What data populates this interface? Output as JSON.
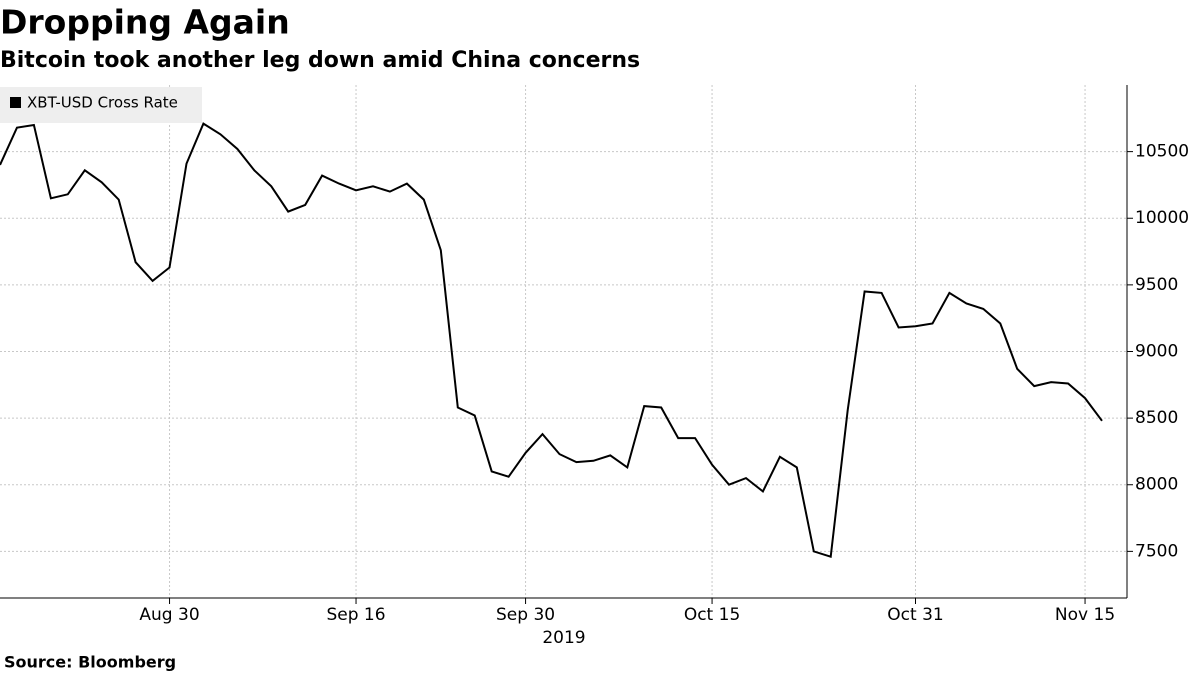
{
  "chart_data": {
    "type": "line",
    "title": "Dropping Again",
    "subtitle": "Bitcoin took another leg down amid China concerns",
    "source": "Source: Bloomberg",
    "x_sublabel": "2019",
    "categories": [
      null,
      null,
      null,
      null,
      null,
      null,
      null,
      null,
      null,
      null,
      "Aug 30",
      null,
      null,
      null,
      null,
      null,
      null,
      null,
      null,
      null,
      null,
      "Sep 16",
      null,
      null,
      null,
      null,
      null,
      null,
      null,
      null,
      null,
      "Sep 30",
      null,
      null,
      null,
      null,
      null,
      null,
      null,
      null,
      null,
      null,
      "Oct 15",
      null,
      null,
      null,
      null,
      null,
      null,
      null,
      null,
      null,
      null,
      null,
      "Oct 31",
      null,
      null,
      null,
      null,
      null,
      null,
      null,
      null,
      null,
      "Nov 15",
      null
    ],
    "series": [
      {
        "name": "XBT-USD Cross Rate",
        "color": "#000000",
        "values": [
          10400,
          10680,
          10700,
          10150,
          10180,
          10360,
          10270,
          10140,
          9670,
          9530,
          9630,
          10410,
          10710,
          10630,
          10520,
          10360,
          10240,
          10050,
          10100,
          10320,
          10260,
          10210,
          10240,
          10200,
          10260,
          10140,
          9760,
          8580,
          8520,
          8100,
          8060,
          8240,
          8380,
          8230,
          8170,
          8180,
          8220,
          8130,
          8590,
          8580,
          8350,
          8350,
          8150,
          8000,
          8050,
          7950,
          8210,
          8130,
          7500,
          7460,
          8560,
          9450,
          9440,
          9180,
          9190,
          9210,
          9440,
          9360,
          9320,
          9210,
          8870,
          8740,
          8770,
          8760,
          8650,
          8480
        ]
      }
    ],
    "ylim": [
      7150,
      11000
    ],
    "yticks": [
      7500,
      8000,
      8500,
      9000,
      9500,
      10000,
      10500
    ],
    "grid": true,
    "legend": "top-left"
  }
}
